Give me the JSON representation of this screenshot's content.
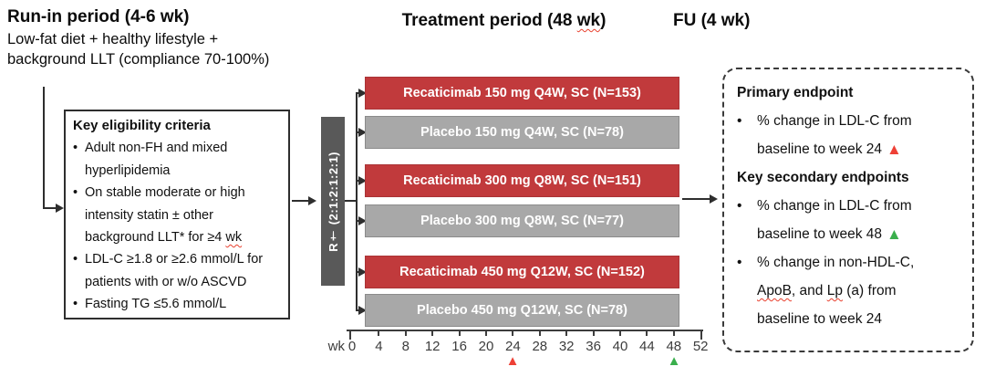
{
  "colors": {
    "treatment_bar": "#c13a3c",
    "placebo_bar": "#a8a8a8",
    "randomization_bar": "#595959",
    "marker_red": "#ee4036",
    "marker_green": "#3aaf4c",
    "spellcheck_squiggle": "#e8402e"
  },
  "icons": {
    "triangle_up": "▲"
  },
  "header": {
    "runin_title": "Run-in period (4-6 wk)",
    "runin_line1": "Low-fat diet + healthy lifestyle +",
    "runin_line2": "background LLT (compliance 70-100%)",
    "treatment_title_pre": "Treatment period (48 ",
    "treatment_title_wk": "wk",
    "treatment_title_post": ")",
    "fu_title": "FU (4 wk)"
  },
  "eligibility": {
    "title": "Key eligibility criteria",
    "bullet1": "Adult non-FH and mixed\nhyperlipidemia",
    "bullet2_pre": "On stable moderate or high\nintensity statin ± other\nbackground LLT* for ≥4 ",
    "bullet2_wk": "wk",
    "bullet3": "LDL-C ≥1.8 or ≥2.6 mmol/L for\npatients with or w/o ASCVD",
    "bullet4": "Fasting TG ≤5.6 mmol/L"
  },
  "randomization": {
    "label": "R† (2:1:2:1:2:1)"
  },
  "arms": [
    {
      "label": "Recaticimab 150 mg Q4W, SC (N=153)",
      "type": "treatment"
    },
    {
      "label": "Placebo 150 mg Q4W, SC (N=78)",
      "type": "placebo"
    },
    {
      "label": "Recaticimab 300 mg Q8W, SC (N=151)",
      "type": "treatment"
    },
    {
      "label": "Placebo 300 mg Q8W, SC (N=77)",
      "type": "placebo"
    },
    {
      "label": "Recaticimab 450 mg Q12W, SC (N=152)",
      "type": "treatment"
    },
    {
      "label": "Placebo 450 mg Q12W, SC (N=78)",
      "type": "placebo"
    }
  ],
  "axis": {
    "unit_label": "wk",
    "ticks": [
      "0",
      "4",
      "8",
      "12",
      "16",
      "20",
      "24",
      "28",
      "32",
      "36",
      "40",
      "44",
      "48",
      "52"
    ],
    "primary_marker_week": "24",
    "secondary_marker_week": "48"
  },
  "endpoints": {
    "primary_title": "Primary endpoint",
    "primary_bullet": "% change in LDL-C from\nbaseline to week 24",
    "secondary_title": "Key secondary endpoints",
    "secondary_bullet1": "% change in LDL-C from\nbaseline to week 48",
    "secondary_bullet2_s1": "% change in non-HDL-C,\n",
    "secondary_bullet2_apob": "ApoB",
    "secondary_bullet2_s2": ", and ",
    "secondary_bullet2_lp": "Lp",
    "secondary_bullet2_s3": " (a) from\nbaseline to week 24"
  }
}
